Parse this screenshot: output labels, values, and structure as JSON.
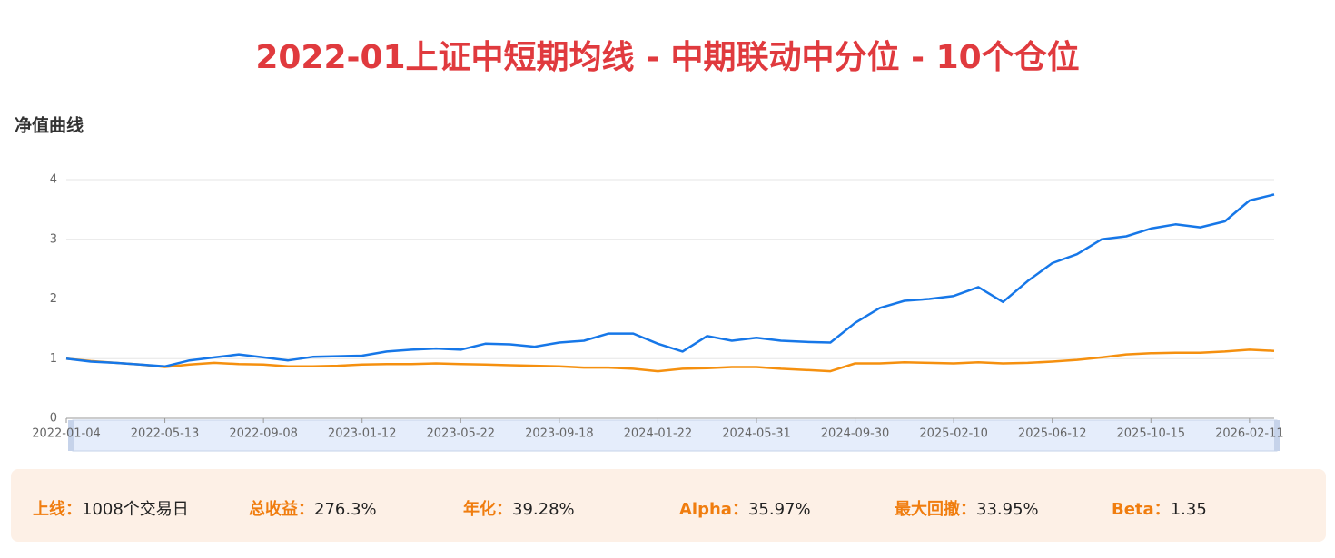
{
  "title": "2022-01上证中短期均线 - 中期联动中分位 - 10个仓位",
  "chart_data": {
    "type": "line",
    "title": "净值曲线",
    "categories": [
      "2022-01-04",
      null,
      null,
      null,
      "2022-05-13",
      null,
      null,
      null,
      "2022-09-08",
      null,
      null,
      null,
      "2023-01-12",
      null,
      null,
      null,
      "2023-05-22",
      null,
      null,
      null,
      "2023-09-18",
      null,
      null,
      null,
      "2024-01-22",
      null,
      null,
      null,
      "2024-05-31",
      null,
      null,
      null,
      "2024-09-30",
      null,
      null,
      null,
      "2025-02-10",
      null,
      null,
      null,
      "2025-06-12",
      null,
      null,
      null,
      "2025-10-15",
      null,
      null,
      null,
      "2026-02-11",
      null
    ],
    "series": [
      {
        "color": "#1677e8",
        "values": [
          1.0,
          0.95,
          0.93,
          0.9,
          0.87,
          0.97,
          1.02,
          1.07,
          1.02,
          0.97,
          1.03,
          1.04,
          1.05,
          1.12,
          1.15,
          1.17,
          1.15,
          1.25,
          1.24,
          1.2,
          1.27,
          1.3,
          1.42,
          1.42,
          1.25,
          1.12,
          1.38,
          1.3,
          1.35,
          1.3,
          1.28,
          1.27,
          1.6,
          1.85,
          1.97,
          2.0,
          2.05,
          2.2,
          1.95,
          2.3,
          2.6,
          2.75,
          3.0,
          3.05,
          3.18,
          3.25,
          3.2,
          3.3,
          3.65,
          3.75
        ]
      },
      {
        "color": "#f5900f",
        "values": [
          1.0,
          0.96,
          0.93,
          0.9,
          0.86,
          0.9,
          0.93,
          0.91,
          0.9,
          0.87,
          0.87,
          0.88,
          0.9,
          0.91,
          0.91,
          0.92,
          0.91,
          0.9,
          0.89,
          0.88,
          0.87,
          0.85,
          0.85,
          0.83,
          0.79,
          0.83,
          0.84,
          0.86,
          0.86,
          0.83,
          0.81,
          0.79,
          0.92,
          0.92,
          0.94,
          0.93,
          0.92,
          0.94,
          0.92,
          0.93,
          0.95,
          0.98,
          1.02,
          1.07,
          1.09,
          1.1,
          1.1,
          1.12,
          1.15,
          1.13
        ]
      }
    ],
    "ylim": [
      0,
      4
    ],
    "yticks": [
      0,
      1,
      2,
      3,
      4
    ],
    "grid": true
  },
  "stats": [
    {
      "label": "上线：",
      "value": "1008个交易日"
    },
    {
      "label": "总收益：",
      "value": "276.3%"
    },
    {
      "label": "年化：",
      "value": "39.28%"
    },
    {
      "label": "Alpha：",
      "value": "35.97%"
    },
    {
      "label": "最大回撤：",
      "value": "33.95%"
    },
    {
      "label": "Beta：",
      "value": "1.35"
    }
  ]
}
